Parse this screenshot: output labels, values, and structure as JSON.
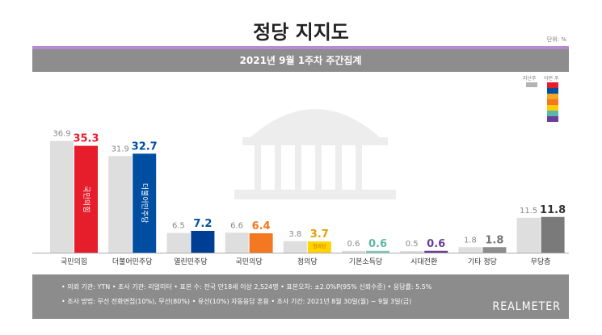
{
  "page": {
    "title": "정당 지지도",
    "unit": "단위: %",
    "subtitle": "2021년 9월 1주차 주간집계",
    "legend": {
      "prev_label": "지난주",
      "cur_label": "이번 주"
    },
    "footer": {
      "line1": "• 의뢰 기관: YTN • 조사 기관: 리얼미터 • 표본 수: 전국 만18세 이상 2,524명 • 표본오차: ±2.0%P(95% 신뢰수준) • 응답률: 5.5%",
      "line2": "• 조사 방법: 무선 전화면접(10%), 무선(80%) • 유선(10%) 자동응답 혼용 • 조사 기간: 2021년 8월 30일(월) ~ 9월 3일(금)",
      "brand": "REALMETER"
    }
  },
  "colors": {
    "prev_bar": "#dedede",
    "legend_stack": [
      "#e61e2b",
      "#004ea2",
      "#f5a623",
      "#f47721",
      "#ffcc00",
      "#5bb8a8",
      "#6a3d9a"
    ]
  },
  "chart_data": {
    "type": "bar",
    "categories": [
      "국민의힘",
      "더불어민주당",
      "열린민주당",
      "국민의당",
      "정의당",
      "기본소득당",
      "시대전환",
      "기타 정당",
      "무당층"
    ],
    "series": [
      {
        "name": "지난주",
        "values": [
          36.9,
          31.9,
          6.5,
          6.6,
          3.8,
          0.6,
          0.5,
          1.8,
          11.5
        ]
      },
      {
        "name": "이번 주",
        "values": [
          35.3,
          32.7,
          7.2,
          6.4,
          3.7,
          0.6,
          0.6,
          1.8,
          11.8
        ]
      }
    ],
    "current_colors": [
      "#e61e2b",
      "#004ea2",
      "#003e95",
      "#f47721",
      "#ffd400",
      "#7ccbb6",
      "#6a3d9a",
      "#8c8c8c",
      "#7a7a7a"
    ],
    "current_label_colors": [
      "#e61e2b",
      "#004ea2",
      "#004ea2",
      "#f47721",
      "#e6a100",
      "#5bb8a8",
      "#6a3d9a",
      "#777777",
      "#333333"
    ],
    "bar_text": [
      "국민의힘",
      "더불어민주당",
      "",
      "",
      "정의당",
      "",
      "",
      "",
      ""
    ],
    "ylim": [
      0,
      40
    ]
  }
}
